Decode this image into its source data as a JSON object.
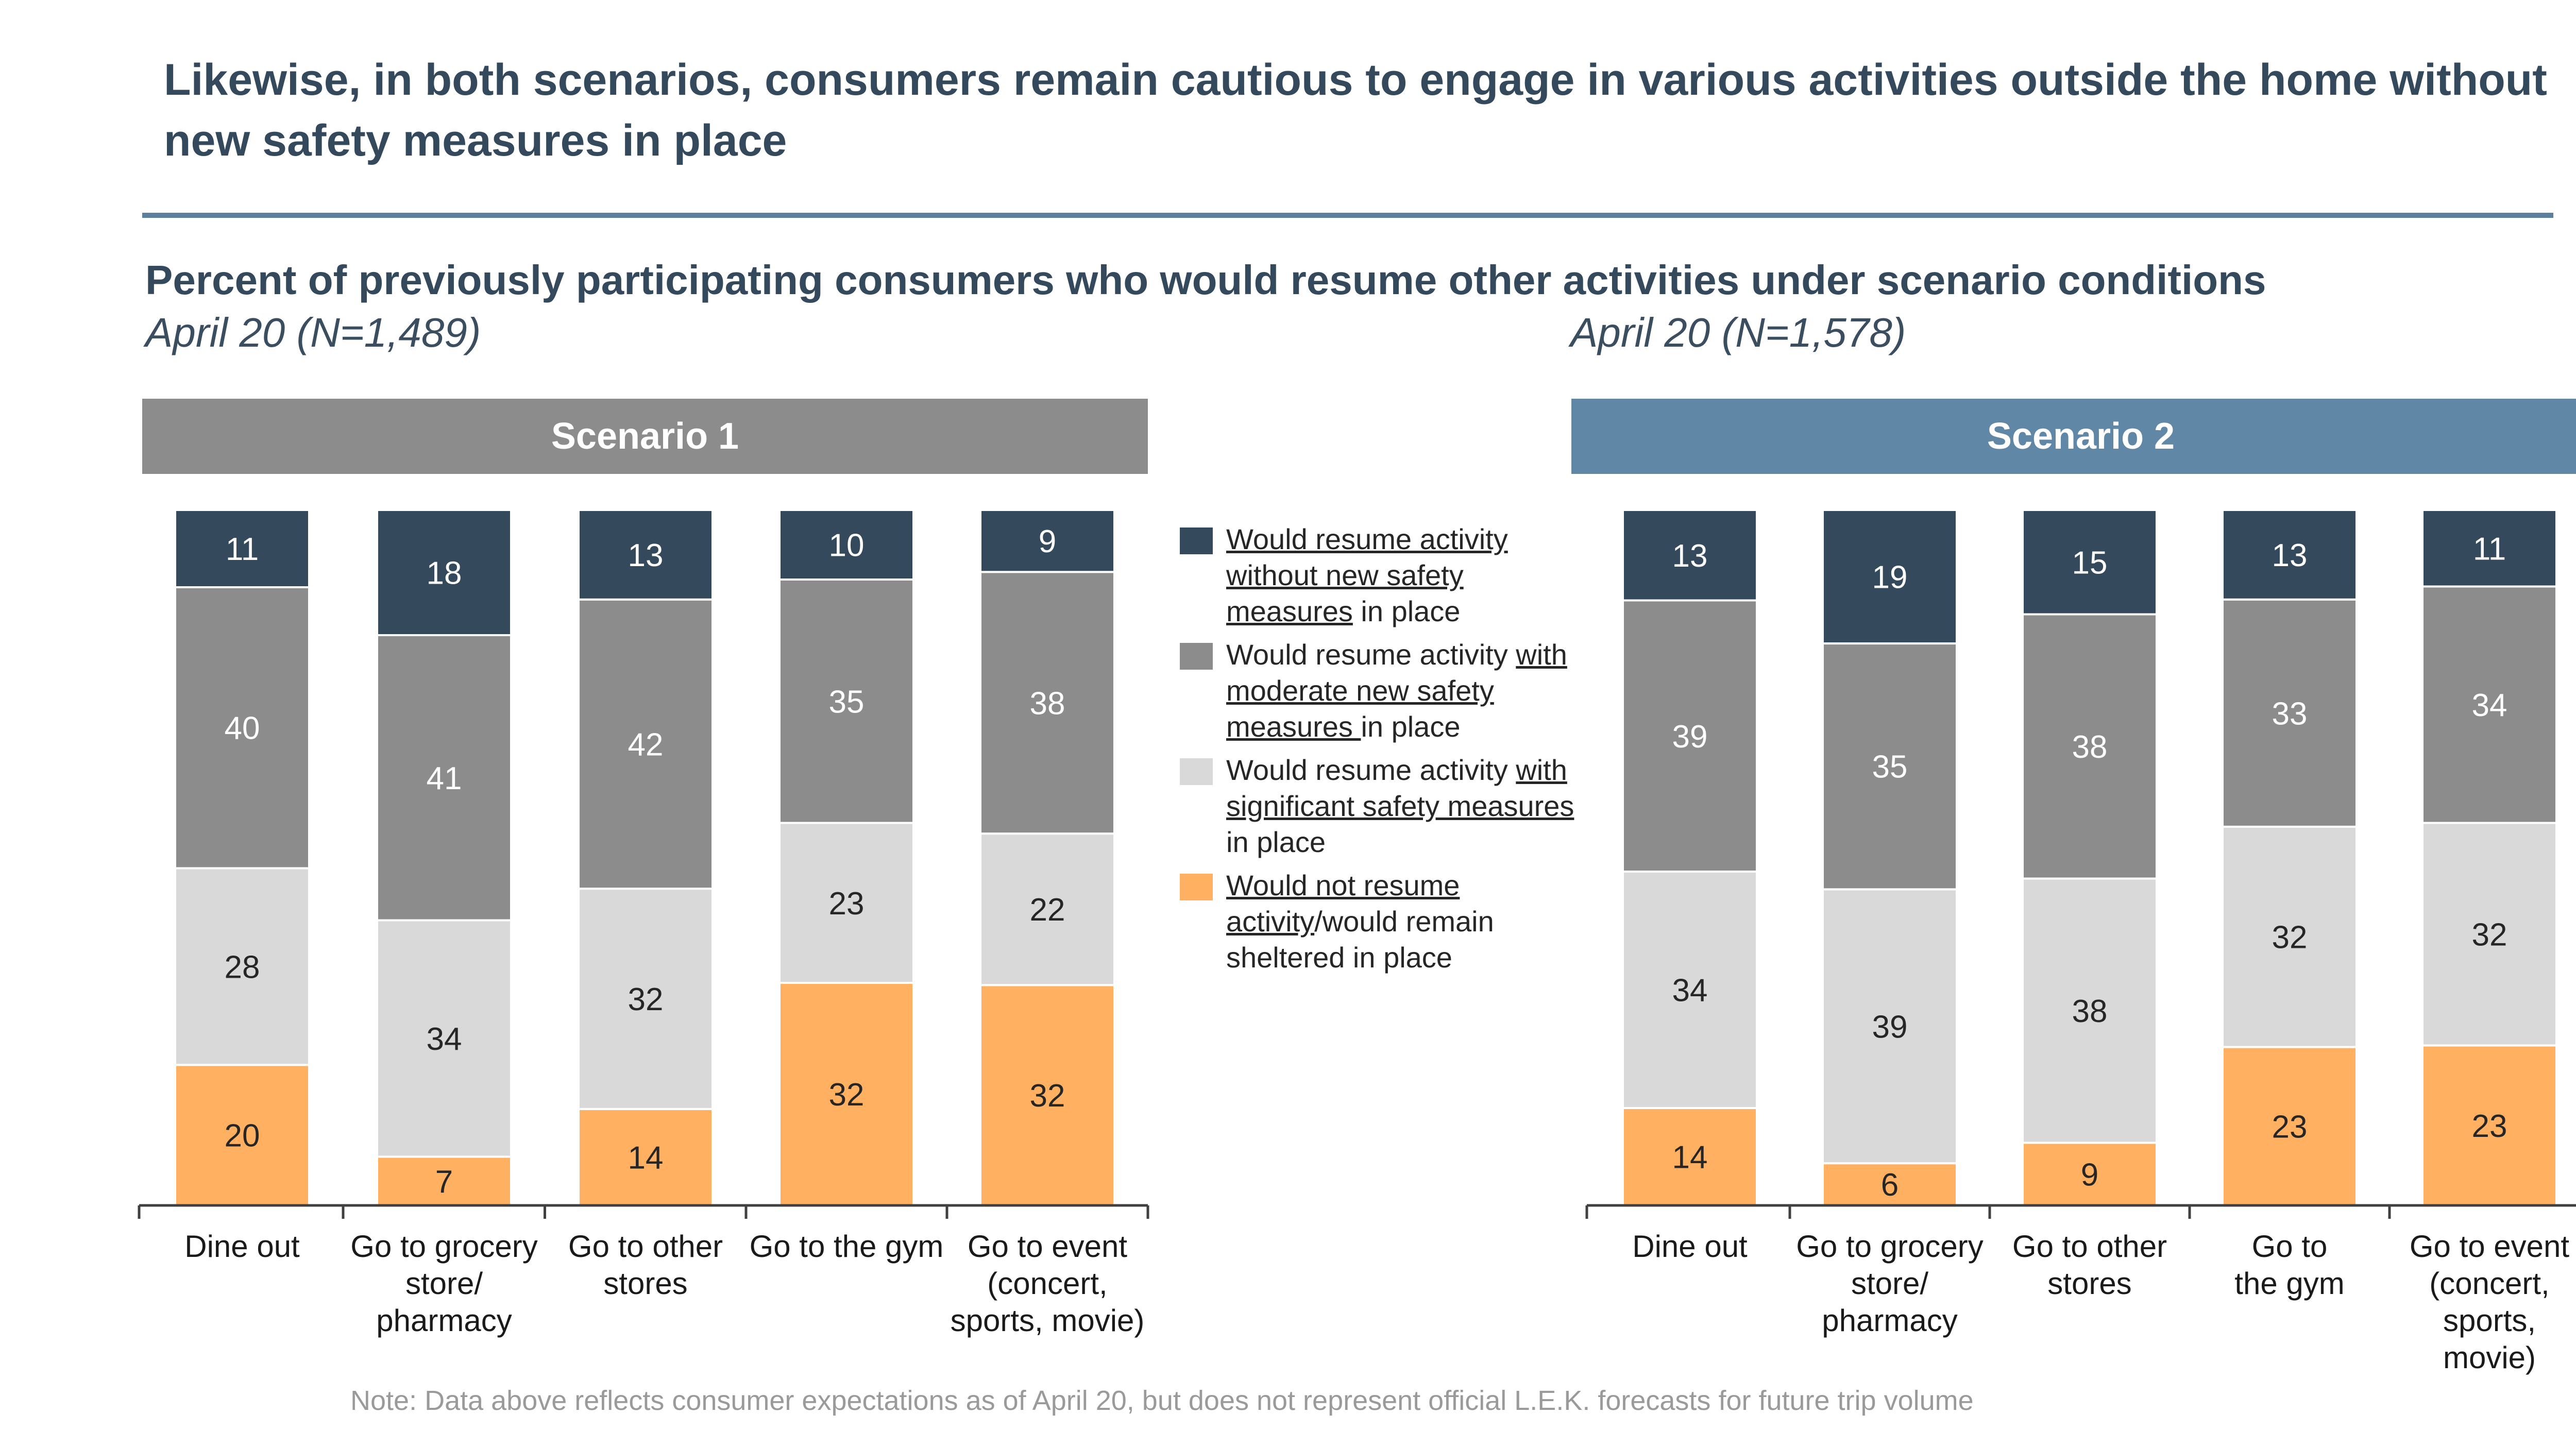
{
  "headline": "Likewise, in both scenarios, consumers remain cautious to engage in various activities outside the home without new safety measures in place",
  "subtitle": "Percent of previously participating consumers who would resume other activities under scenario conditions",
  "colors": {
    "no_new_measures": "#344a5c",
    "moderate": "#8c8c8c",
    "significant": "#d9d9d9",
    "not_resume": "#ffb060",
    "scenario1_banner": "#8c8c8c",
    "scenario2_banner": "#6187a6",
    "accent_rule": "#5d7f9e"
  },
  "legend": [
    {
      "underlined": "Would resume activity without new safety measures",
      "rest": " in place",
      "pre": ""
    },
    {
      "pre": "Would resume activity ",
      "underlined": "with moderate new safety measures ",
      "rest": "in place"
    },
    {
      "pre": "Would resume activity ",
      "underlined": "with significant safety measures ",
      "rest": "in place"
    },
    {
      "pre": "",
      "underlined": "Would not resume activity",
      "rest": "/would remain sheltered in place"
    }
  ],
  "note": "Note: Data above reflects consumer expectations as of April 20, but does not represent official L.E.K. forecasts for future trip volume",
  "chart_data": [
    {
      "type": "bar",
      "stacked": true,
      "title": "Scenario 1",
      "sample": "April 20 (N=1,489)",
      "categories": [
        [
          "Dine out"
        ],
        [
          "Go to grocery",
          "store/",
          "pharmacy"
        ],
        [
          "Go to other",
          "stores"
        ],
        [
          "Go to the gym"
        ],
        [
          "Go to event",
          "(concert,",
          "sports, movie)"
        ]
      ],
      "series": [
        {
          "name": "Would not resume activity/would remain sheltered in place",
          "values": [
            20,
            7,
            14,
            32,
            32
          ]
        },
        {
          "name": "Would resume activity with significant safety measures in place",
          "values": [
            28,
            34,
            32,
            23,
            22
          ]
        },
        {
          "name": "Would resume activity with moderate new safety measures in place",
          "values": [
            40,
            41,
            42,
            35,
            38
          ]
        },
        {
          "name": "Would resume activity without new safety measures in place",
          "values": [
            11,
            18,
            13,
            10,
            9
          ]
        }
      ],
      "ylim": [
        0,
        100
      ]
    },
    {
      "type": "bar",
      "stacked": true,
      "title": "Scenario 2",
      "sample": "April 20 (N=1,578)",
      "categories": [
        [
          "Dine out"
        ],
        [
          "Go to grocery",
          "store/",
          "pharmacy"
        ],
        [
          "Go to other",
          "stores"
        ],
        [
          "Go to",
          "the gym"
        ],
        [
          "Go to event",
          "(concert,",
          "sports,",
          "movie)"
        ]
      ],
      "series": [
        {
          "name": "Would not resume activity/would remain sheltered in place",
          "values": [
            14,
            6,
            9,
            23,
            23
          ]
        },
        {
          "name": "Would resume activity with significant safety measures in place",
          "values": [
            34,
            39,
            38,
            32,
            32
          ]
        },
        {
          "name": "Would resume activity with moderate new safety measures in place",
          "values": [
            39,
            35,
            38,
            33,
            34
          ]
        },
        {
          "name": "Would resume activity without new safety measures in place",
          "values": [
            13,
            19,
            15,
            13,
            11
          ]
        }
      ],
      "ylim": [
        0,
        100
      ]
    }
  ]
}
